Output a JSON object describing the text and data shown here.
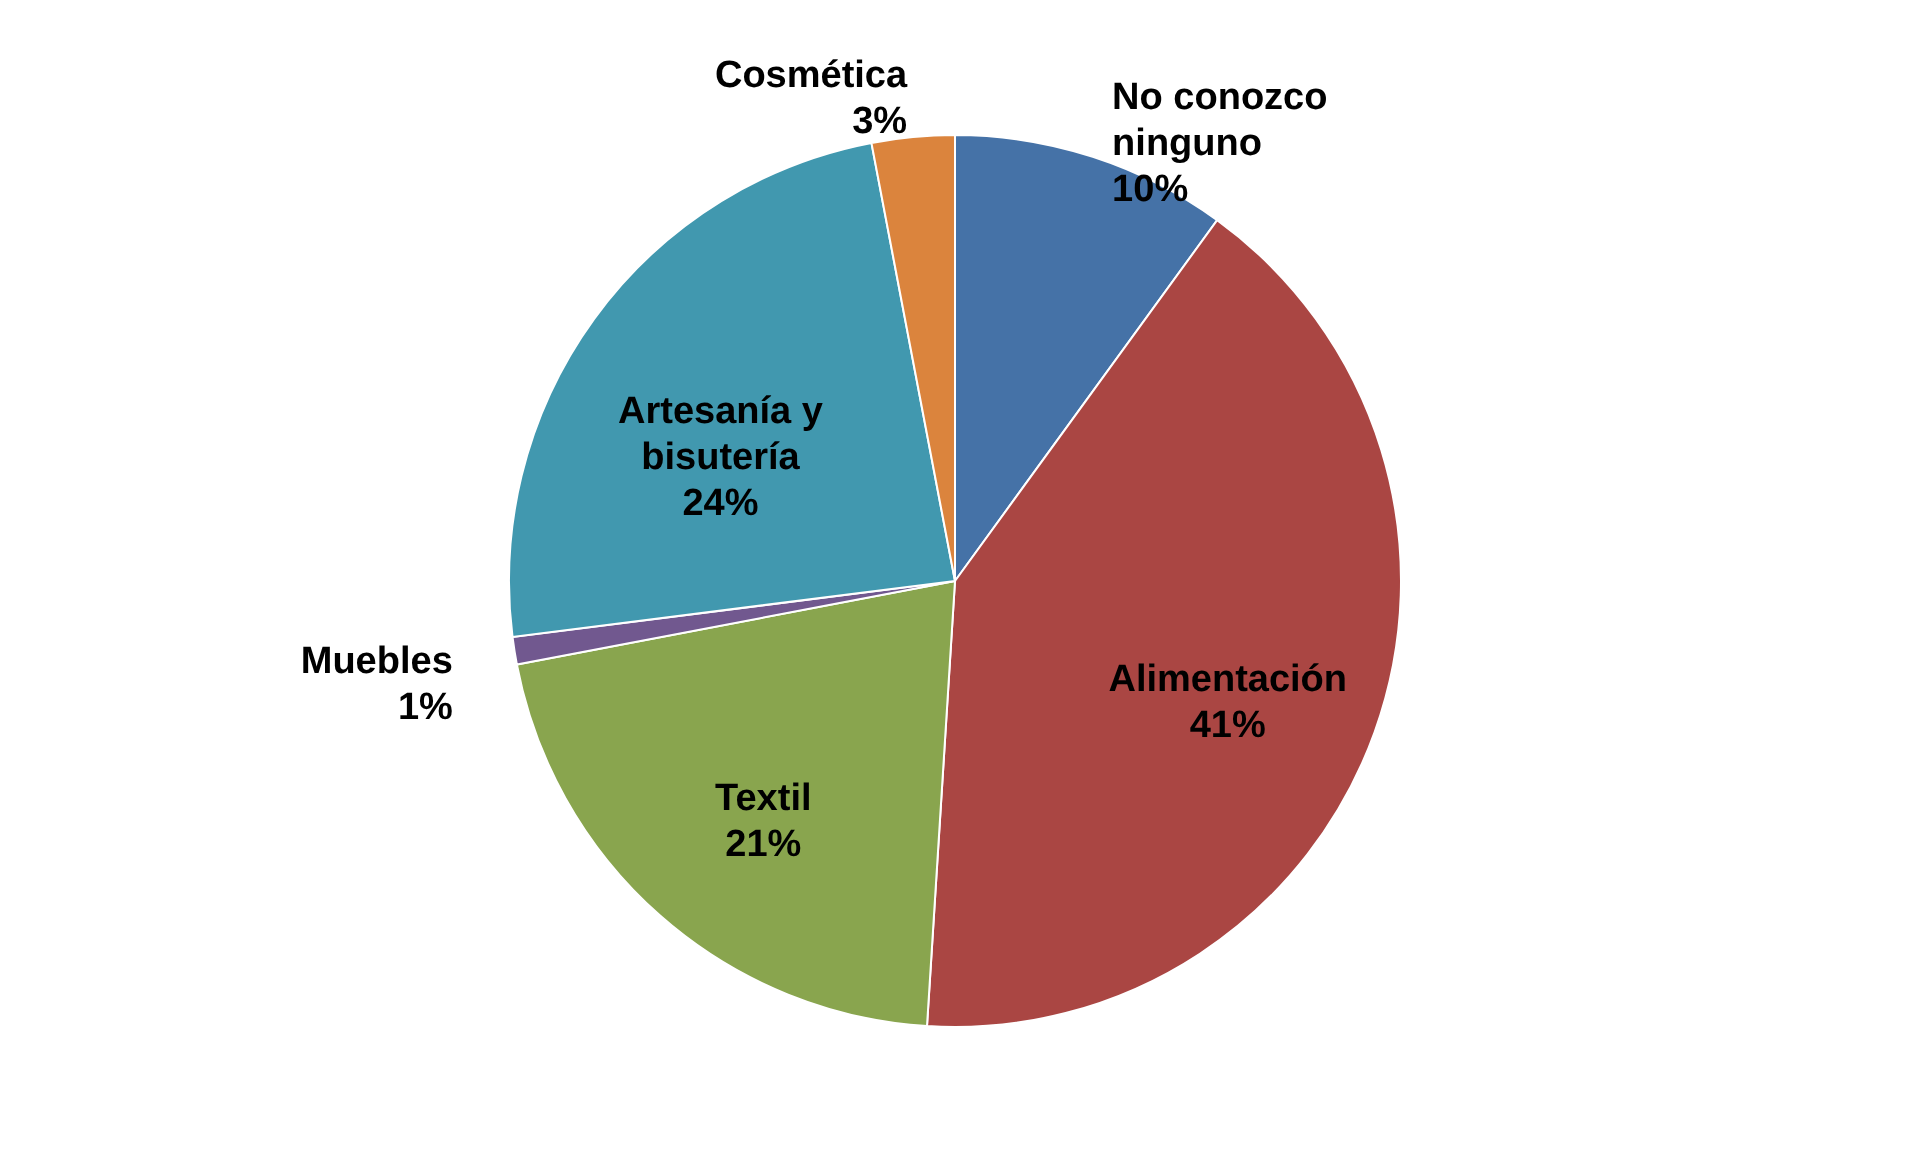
{
  "chart_data": {
    "type": "pie",
    "categories": [
      "No conozco ninguno",
      "Alimentación",
      "Textil",
      "Muebles",
      "Artesanía y bisutería",
      "Cosmética"
    ],
    "values": [
      10,
      41,
      21,
      1,
      24,
      3
    ],
    "value_labels": [
      "10%",
      "41%",
      "21%",
      "1%",
      "24%",
      "3%"
    ],
    "colors": [
      "#4572a7",
      "#aa4643",
      "#89a54e",
      "#71588f",
      "#4198af",
      "#db843d"
    ]
  }
}
